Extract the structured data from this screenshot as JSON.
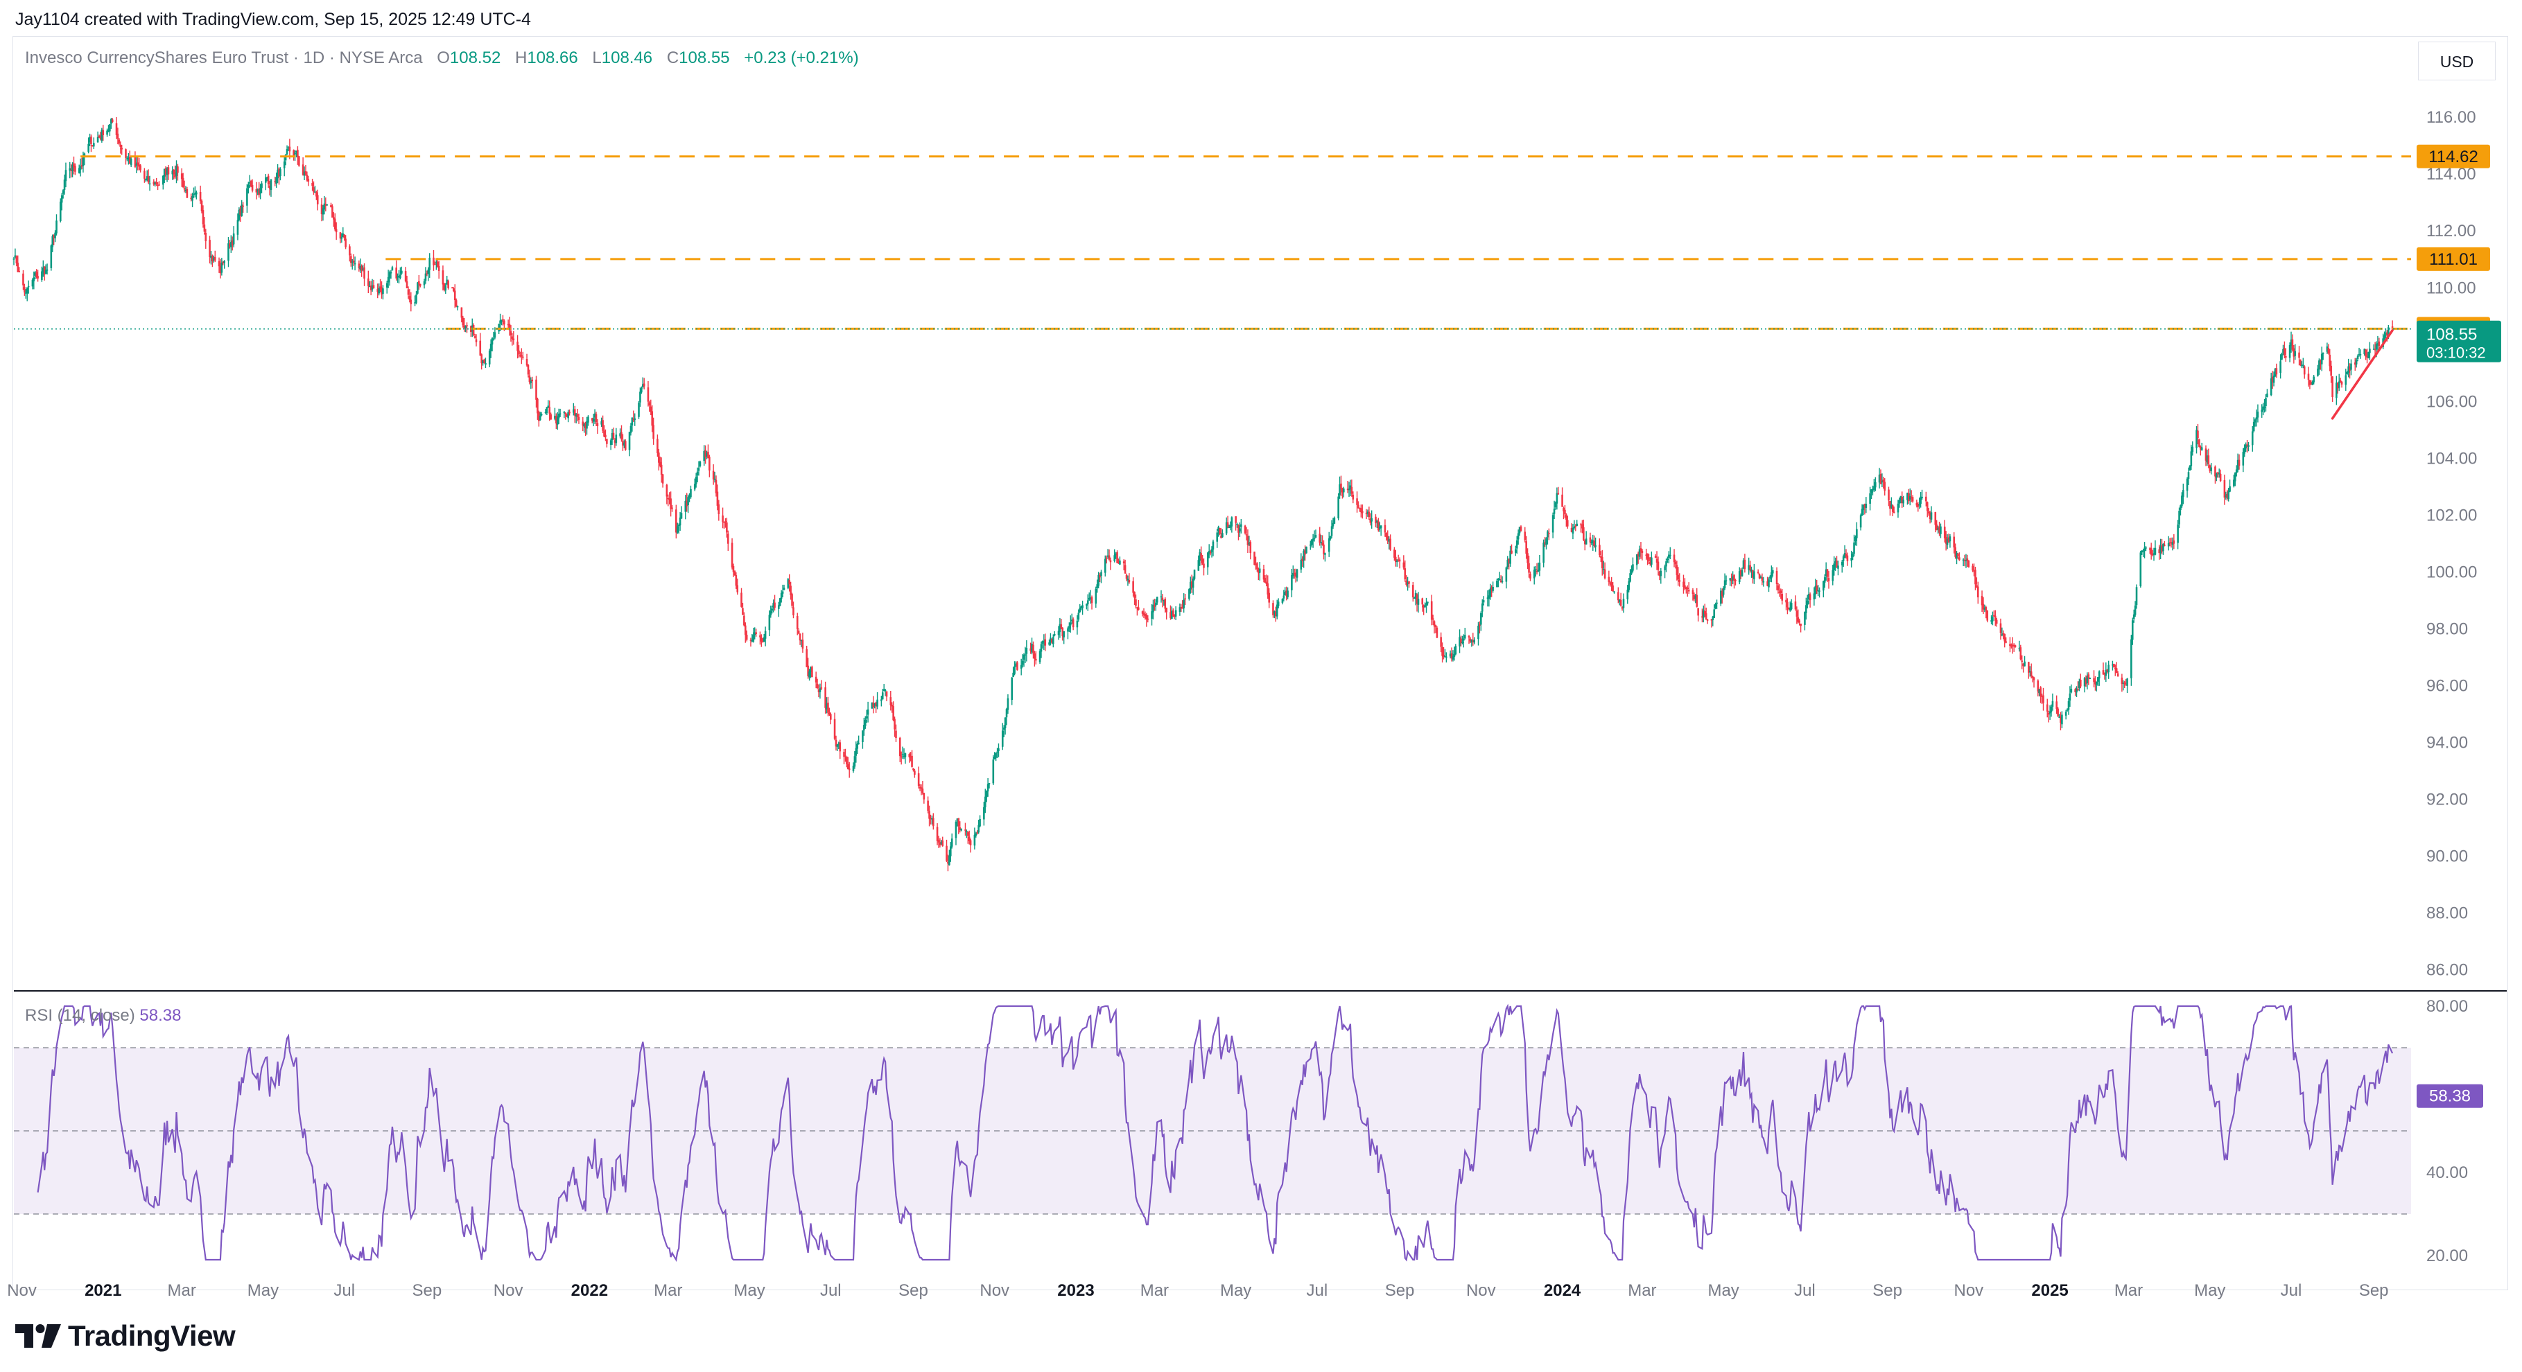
{
  "header": {
    "creator": "Jay1104 created with TradingView.com, Sep 15, 2025 12:49 UTC-4"
  },
  "legend": {
    "title": "Invesco CurrencyShares Euro Trust · 1D · NYSE Arca",
    "o_label": "O",
    "o": "108.52",
    "h_label": "H",
    "h": "108.66",
    "l_label": "L",
    "l": "108.46",
    "c_label": "C",
    "c": "108.55",
    "change": "+0.23 (+0.21%)"
  },
  "currency": "USD",
  "price_badges": {
    "last": "108.55",
    "countdown": "03:10:32"
  },
  "rsi": {
    "label": "RSI (14, close)",
    "value": "58.38"
  },
  "brand": {
    "name": "TradingView"
  },
  "colors": {
    "up": "#089981",
    "down": "#f23645",
    "level": "#f59e0b",
    "rsi": "#7e57c2",
    "trendline": "#f23645"
  },
  "chart_data": [
    {
      "type": "candlestick",
      "name": "price",
      "ylim": [
        85.5,
        117.2
      ],
      "yticks": [
        "116.00",
        "114.00",
        "112.00",
        "110.00",
        "106.00",
        "104.00",
        "102.00",
        "100.00",
        "98.00",
        "96.00",
        "94.00",
        "92.00",
        "90.00",
        "88.00",
        "86.00"
      ],
      "xlim": [
        "2020-10-26",
        "2025-09-29"
      ],
      "xticks": [
        {
          "date": "2020-11-01",
          "label": "Nov",
          "bold": false
        },
        {
          "date": "2021-01-01",
          "label": "2021",
          "bold": true
        },
        {
          "date": "2021-03-01",
          "label": "Mar",
          "bold": false
        },
        {
          "date": "2021-05-01",
          "label": "May",
          "bold": false
        },
        {
          "date": "2021-07-01",
          "label": "Jul",
          "bold": false
        },
        {
          "date": "2021-09-01",
          "label": "Sep",
          "bold": false
        },
        {
          "date": "2021-11-01",
          "label": "Nov",
          "bold": false
        },
        {
          "date": "2022-01-01",
          "label": "2022",
          "bold": true
        },
        {
          "date": "2022-03-01",
          "label": "Mar",
          "bold": false
        },
        {
          "date": "2022-05-01",
          "label": "May",
          "bold": false
        },
        {
          "date": "2022-07-01",
          "label": "Jul",
          "bold": false
        },
        {
          "date": "2022-09-01",
          "label": "Sep",
          "bold": false
        },
        {
          "date": "2022-11-01",
          "label": "Nov",
          "bold": false
        },
        {
          "date": "2023-01-01",
          "label": "2023",
          "bold": true
        },
        {
          "date": "2023-03-01",
          "label": "Mar",
          "bold": false
        },
        {
          "date": "2023-05-01",
          "label": "May",
          "bold": false
        },
        {
          "date": "2023-07-01",
          "label": "Jul",
          "bold": false
        },
        {
          "date": "2023-09-01",
          "label": "Sep",
          "bold": false
        },
        {
          "date": "2023-11-01",
          "label": "Nov",
          "bold": false
        },
        {
          "date": "2024-01-01",
          "label": "2024",
          "bold": true
        },
        {
          "date": "2024-03-01",
          "label": "Mar",
          "bold": false
        },
        {
          "date": "2024-05-01",
          "label": "May",
          "bold": false
        },
        {
          "date": "2024-07-01",
          "label": "Jul",
          "bold": false
        },
        {
          "date": "2024-09-01",
          "label": "Sep",
          "bold": false
        },
        {
          "date": "2024-11-01",
          "label": "Nov",
          "bold": false
        },
        {
          "date": "2025-01-01",
          "label": "2025",
          "bold": true
        },
        {
          "date": "2025-03-01",
          "label": "Mar",
          "bold": false
        },
        {
          "date": "2025-05-01",
          "label": "May",
          "bold": false
        },
        {
          "date": "2025-07-01",
          "label": "Jul",
          "bold": false
        },
        {
          "date": "2025-09-01",
          "label": "Sep",
          "bold": false
        }
      ],
      "levels": [
        {
          "value": 114.62,
          "label": "114.62",
          "start": "2020-12-15"
        },
        {
          "value": 111.01,
          "label": "111.01",
          "start": "2021-08-01"
        },
        {
          "value": 108.56,
          "label": "108.56",
          "start": "2021-09-15"
        }
      ],
      "last_price_line": 108.55,
      "trendline": {
        "from": {
          "date": "2025-08-01",
          "value": 105.4
        },
        "to": {
          "date": "2025-09-15",
          "value": 108.5
        }
      },
      "anchors": [
        {
          "date": "2020-10-26",
          "value": 111.3
        },
        {
          "date": "2020-11-04",
          "value": 109.8
        },
        {
          "date": "2020-11-20",
          "value": 110.6
        },
        {
          "date": "2020-12-04",
          "value": 113.5
        },
        {
          "date": "2020-12-20",
          "value": 114.8
        },
        {
          "date": "2021-01-06",
          "value": 115.9
        },
        {
          "date": "2021-01-20",
          "value": 114.7
        },
        {
          "date": "2021-02-05",
          "value": 113.3
        },
        {
          "date": "2021-02-25",
          "value": 114.4
        },
        {
          "date": "2021-03-30",
          "value": 110.7
        },
        {
          "date": "2021-04-20",
          "value": 113.4
        },
        {
          "date": "2021-05-25",
          "value": 114.4
        },
        {
          "date": "2021-06-18",
          "value": 112.4
        },
        {
          "date": "2021-07-06",
          "value": 111.0
        },
        {
          "date": "2021-07-20",
          "value": 110.2
        },
        {
          "date": "2021-08-20",
          "value": 110.0
        },
        {
          "date": "2021-09-03",
          "value": 111.1
        },
        {
          "date": "2021-09-20",
          "value": 109.8
        },
        {
          "date": "2021-10-12",
          "value": 108.0
        },
        {
          "date": "2021-11-01",
          "value": 108.5
        },
        {
          "date": "2021-11-24",
          "value": 105.2
        },
        {
          "date": "2022-01-05",
          "value": 105.2
        },
        {
          "date": "2022-01-28",
          "value": 104.7
        },
        {
          "date": "2022-02-10",
          "value": 106.4
        },
        {
          "date": "2022-03-07",
          "value": 101.5
        },
        {
          "date": "2022-03-31",
          "value": 103.8
        },
        {
          "date": "2022-04-28",
          "value": 98.5
        },
        {
          "date": "2022-05-12",
          "value": 97.4
        },
        {
          "date": "2022-05-30",
          "value": 99.7
        },
        {
          "date": "2022-06-15",
          "value": 97.0
        },
        {
          "date": "2022-07-14",
          "value": 93.0
        },
        {
          "date": "2022-08-10",
          "value": 95.5
        },
        {
          "date": "2022-08-25",
          "value": 93.5
        },
        {
          "date": "2022-09-06",
          "value": 92.3
        },
        {
          "date": "2022-09-27",
          "value": 89.6
        },
        {
          "date": "2022-10-04",
          "value": 91.5
        },
        {
          "date": "2022-10-14",
          "value": 90.5
        },
        {
          "date": "2022-11-15",
          "value": 96.4
        },
        {
          "date": "2023-01-05",
          "value": 98.3
        },
        {
          "date": "2023-01-31",
          "value": 100.7
        },
        {
          "date": "2023-02-24",
          "value": 98.4
        },
        {
          "date": "2023-03-15",
          "value": 98.7
        },
        {
          "date": "2023-04-28",
          "value": 102.0
        },
        {
          "date": "2023-05-31",
          "value": 98.6
        },
        {
          "date": "2023-06-22",
          "value": 101.0
        },
        {
          "date": "2023-07-06",
          "value": 100.7
        },
        {
          "date": "2023-07-18",
          "value": 103.5
        },
        {
          "date": "2023-08-25",
          "value": 100.4
        },
        {
          "date": "2023-09-12",
          "value": 99.2
        },
        {
          "date": "2023-10-03",
          "value": 97.3
        },
        {
          "date": "2023-10-25",
          "value": 98.0
        },
        {
          "date": "2023-11-30",
          "value": 101.6
        },
        {
          "date": "2023-12-08",
          "value": 100.1
        },
        {
          "date": "2023-12-28",
          "value": 102.4
        },
        {
          "date": "2024-02-14",
          "value": 99.3
        },
        {
          "date": "2024-03-08",
          "value": 101.0
        },
        {
          "date": "2024-04-16",
          "value": 98.5
        },
        {
          "date": "2024-05-16",
          "value": 100.4
        },
        {
          "date": "2024-06-26",
          "value": 98.6
        },
        {
          "date": "2024-08-02",
          "value": 100.6
        },
        {
          "date": "2024-08-26",
          "value": 103.0
        },
        {
          "date": "2024-09-05",
          "value": 102.2
        },
        {
          "date": "2024-09-25",
          "value": 102.8
        },
        {
          "date": "2024-11-01",
          "value": 100.0
        },
        {
          "date": "2024-12-02",
          "value": 96.9
        },
        {
          "date": "2025-01-13",
          "value": 95.1
        },
        {
          "date": "2025-02-05",
          "value": 96.3
        },
        {
          "date": "2025-02-28",
          "value": 96.3
        },
        {
          "date": "2025-03-10",
          "value": 100.8
        },
        {
          "date": "2025-04-03",
          "value": 101.0
        },
        {
          "date": "2025-04-21",
          "value": 105.0
        },
        {
          "date": "2025-05-12",
          "value": 102.4
        },
        {
          "date": "2025-06-13",
          "value": 105.9
        },
        {
          "date": "2025-07-01",
          "value": 108.2
        },
        {
          "date": "2025-07-15",
          "value": 106.9
        },
        {
          "date": "2025-07-28",
          "value": 107.9
        },
        {
          "date": "2025-08-01",
          "value": 106.0
        },
        {
          "date": "2025-08-14",
          "value": 107.2
        },
        {
          "date": "2025-08-28",
          "value": 107.4
        },
        {
          "date": "2025-09-15",
          "value": 108.55
        }
      ]
    },
    {
      "type": "line",
      "name": "RSI",
      "ylim": [
        17,
        82
      ],
      "yticks": [
        "80.00",
        "40.00",
        "20.00"
      ],
      "bands": {
        "upper": 70,
        "middle": 50,
        "lower": 30
      },
      "last_value": 58.38
    }
  ]
}
